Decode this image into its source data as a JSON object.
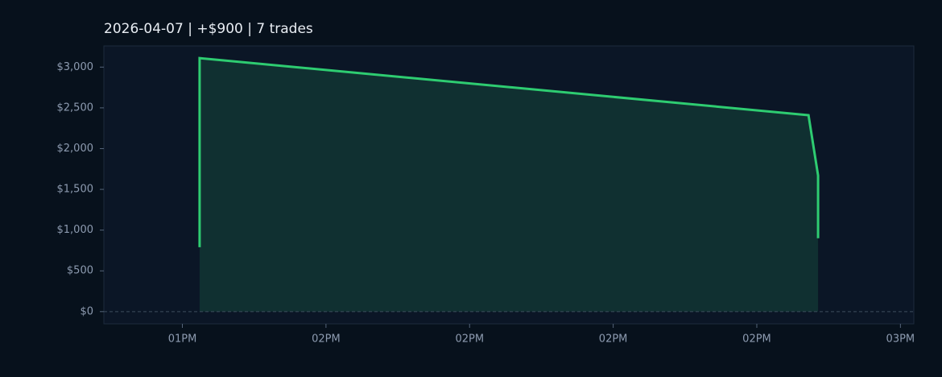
{
  "chart_data": {
    "type": "area",
    "title": "2026-04-07  |  +$900  |  7 trades",
    "x": [
      826.8,
      826.8,
      890.4,
      891.4,
      891.4
    ],
    "values": [
      790,
      3110,
      2410,
      1670,
      900
    ],
    "color": "#2ecc71",
    "xlim": [
      816.8,
      901.4
    ],
    "xticks": [
      {
        "value": 825,
        "label": "01PM"
      },
      {
        "value": 840,
        "label": "02PM"
      },
      {
        "value": 855,
        "label": "02PM"
      },
      {
        "value": 870,
        "label": "02PM"
      },
      {
        "value": 885,
        "label": "02PM"
      },
      {
        "value": 900,
        "label": "03PM"
      }
    ],
    "ylim": [
      -150,
      3260
    ],
    "yticks": [
      {
        "value": 0,
        "label": "$0"
      },
      {
        "value": 500,
        "label": "$500"
      },
      {
        "value": 1000,
        "label": "$1,000"
      },
      {
        "value": 1500,
        "label": "$1,500"
      },
      {
        "value": 2000,
        "label": "$2,000"
      },
      {
        "value": 2500,
        "label": "$2,500"
      },
      {
        "value": 3000,
        "label": "$3,000"
      }
    ],
    "zero_line": true
  }
}
